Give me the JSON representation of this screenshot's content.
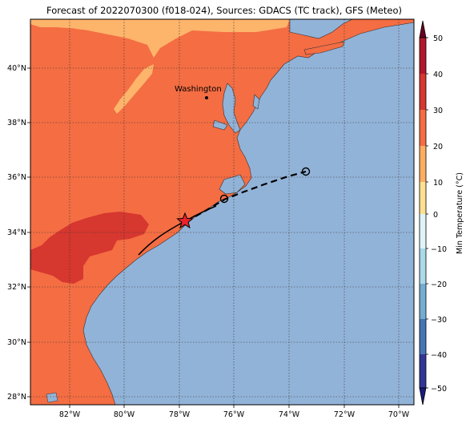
{
  "title": "Forecast of 2022070300 (f018-024), Sources: GDACS (TC track), GFS (Meteo)",
  "city_label": "Washington",
  "lat_labels": [
    "40°N",
    "38°N",
    "36°N",
    "34°N",
    "32°N",
    "30°N",
    "28°N"
  ],
  "lon_labels": [
    "82°W",
    "80°W",
    "78°W",
    "76°W",
    "74°W",
    "72°W",
    "70°W"
  ],
  "colorbar": {
    "label": "Min Temperature (°C)",
    "ticks": [
      "50",
      "40",
      "30",
      "20",
      "10",
      "0",
      "−10",
      "−20",
      "−30",
      "−40",
      "−50"
    ],
    "colors": [
      "#67001f",
      "#b2182b",
      "#d6372f",
      "#f46d43",
      "#fdae61",
      "#fee090",
      "#ffffbf",
      "#e0f3f8",
      "#abd9e9",
      "#74add1",
      "#4575b4",
      "#313695",
      "#1a1a7e"
    ]
  },
  "colors": {
    "ocean": "#92b3d8",
    "land_warm": "#f46d43",
    "land_hot": "#d6372f",
    "land_mild": "#fdb46b"
  },
  "track": {
    "storm_marker": "star",
    "forecast_points": 2
  }
}
